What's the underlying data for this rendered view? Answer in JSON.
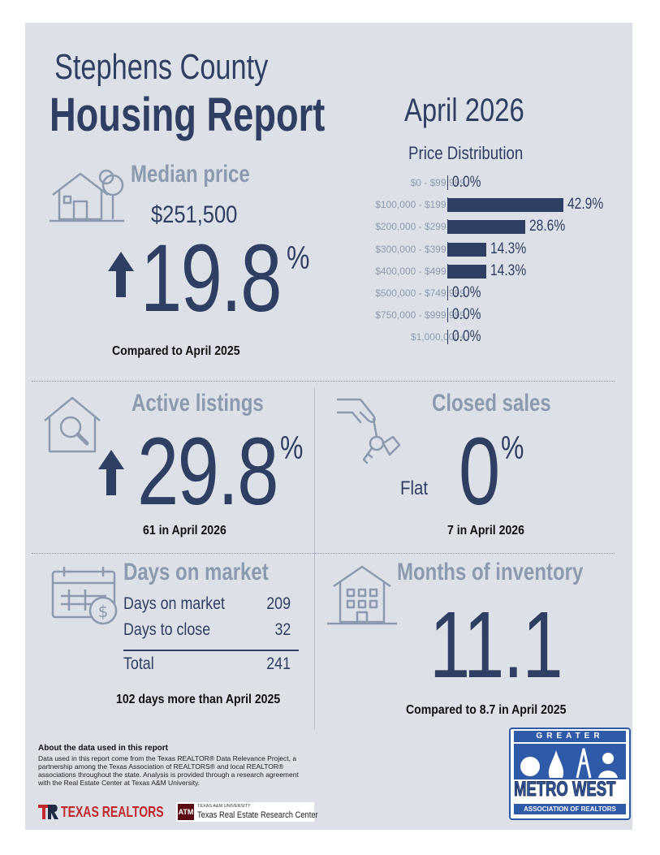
{
  "header": {
    "county": "Stephens County",
    "report": "Housing Report",
    "month": "April 2026"
  },
  "median_price": {
    "title": "Median price",
    "value": "$251,500",
    "change": "19.8",
    "unit": "%",
    "direction": "up",
    "note": "Compared to April 2025"
  },
  "price_distribution": {
    "title": "Price Distribution",
    "chart_data": {
      "type": "bar",
      "orientation": "horizontal",
      "title": "Price Distribution",
      "categories": [
        "$0 - $99,999",
        "$100,000 - $199,999",
        "$200,000 - $299,999",
        "$300,000 - $399,999",
        "$400,000 - $499,999",
        "$500,000 - $749,999",
        "$750,000 - $999,999",
        "$1,000,000+"
      ],
      "values": [
        0.0,
        42.9,
        28.6,
        14.3,
        14.3,
        0.0,
        0.0,
        0.0
      ],
      "labels": [
        "0.0%",
        "42.9%",
        "28.6%",
        "14.3%",
        "14.3%",
        "0.0%",
        "0.0%",
        "0.0%"
      ],
      "xlim": [
        0,
        42.9
      ],
      "color": "#2f3e63"
    }
  },
  "active_listings": {
    "title": "Active listings",
    "change": "29.8",
    "unit": "%",
    "direction": "up",
    "note": "61 in April 2026"
  },
  "closed_sales": {
    "title": "Closed sales",
    "trend": "Flat",
    "change": "0",
    "unit": "%",
    "note": "7 in April 2026"
  },
  "days_on_market": {
    "title": "Days on market",
    "rows": [
      {
        "label": "Days on market",
        "value": "209"
      },
      {
        "label": "Days to close",
        "value": "32"
      }
    ],
    "total_label": "Total",
    "total_value": "241",
    "note": "102 days more than April 2025"
  },
  "months_inventory": {
    "title": "Months of inventory",
    "value": "11.1",
    "note": "Compared to 8.7 in April 2025"
  },
  "about": {
    "heading": "About the data used in this report",
    "text": "Data used in this report come from the Texas REALTOR® Data Relevance Project, a partnership among the Texas Association of REALTORS® and local REALTOR® associations throughout the state. Analysis is provided through a research agreement with the Real Estate Center at Texas A&M University."
  },
  "logos": {
    "texas_realtors": "TEXAS REALTORS",
    "tamu_small": "TEXAS A&M UNIVERSITY",
    "tamu_center": "Texas Real Estate Research Center",
    "assoc_top": "GREATER",
    "assoc_main": "METRO WEST",
    "assoc_bottom": "ASSOCIATION OF REALTORS"
  },
  "colors": {
    "navy": "#2f3e63",
    "steel": "#8c9aaf",
    "background": "#dde1e7",
    "brand_red": "#c0282d"
  }
}
